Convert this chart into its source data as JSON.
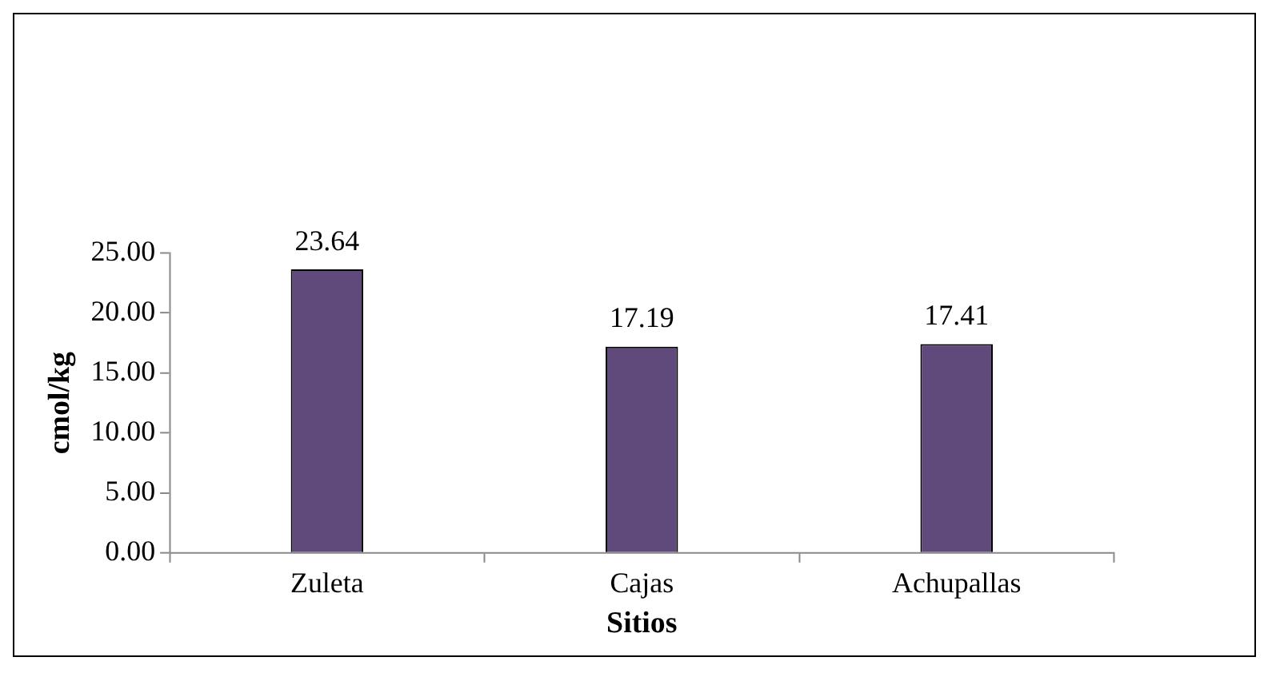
{
  "chart_data": {
    "type": "bar",
    "xlabel": "Sitios",
    "ylabel": "cmol/kg",
    "categories": [
      "Zuleta",
      "Cajas",
      "Achupallas"
    ],
    "values": [
      23.64,
      17.19,
      17.41
    ],
    "color": "#5f4a7b",
    "ylim": [
      0,
      25
    ],
    "yticks": [
      {
        "value": 0,
        "label": "0.00"
      },
      {
        "value": 5,
        "label": "5.00"
      },
      {
        "value": 10,
        "label": "10.00"
      },
      {
        "value": 15,
        "label": "15.00"
      },
      {
        "value": 20,
        "label": "20.00"
      },
      {
        "value": 25,
        "label": "25.00"
      }
    ],
    "data_labels": true,
    "grid": false,
    "legend": false
  }
}
